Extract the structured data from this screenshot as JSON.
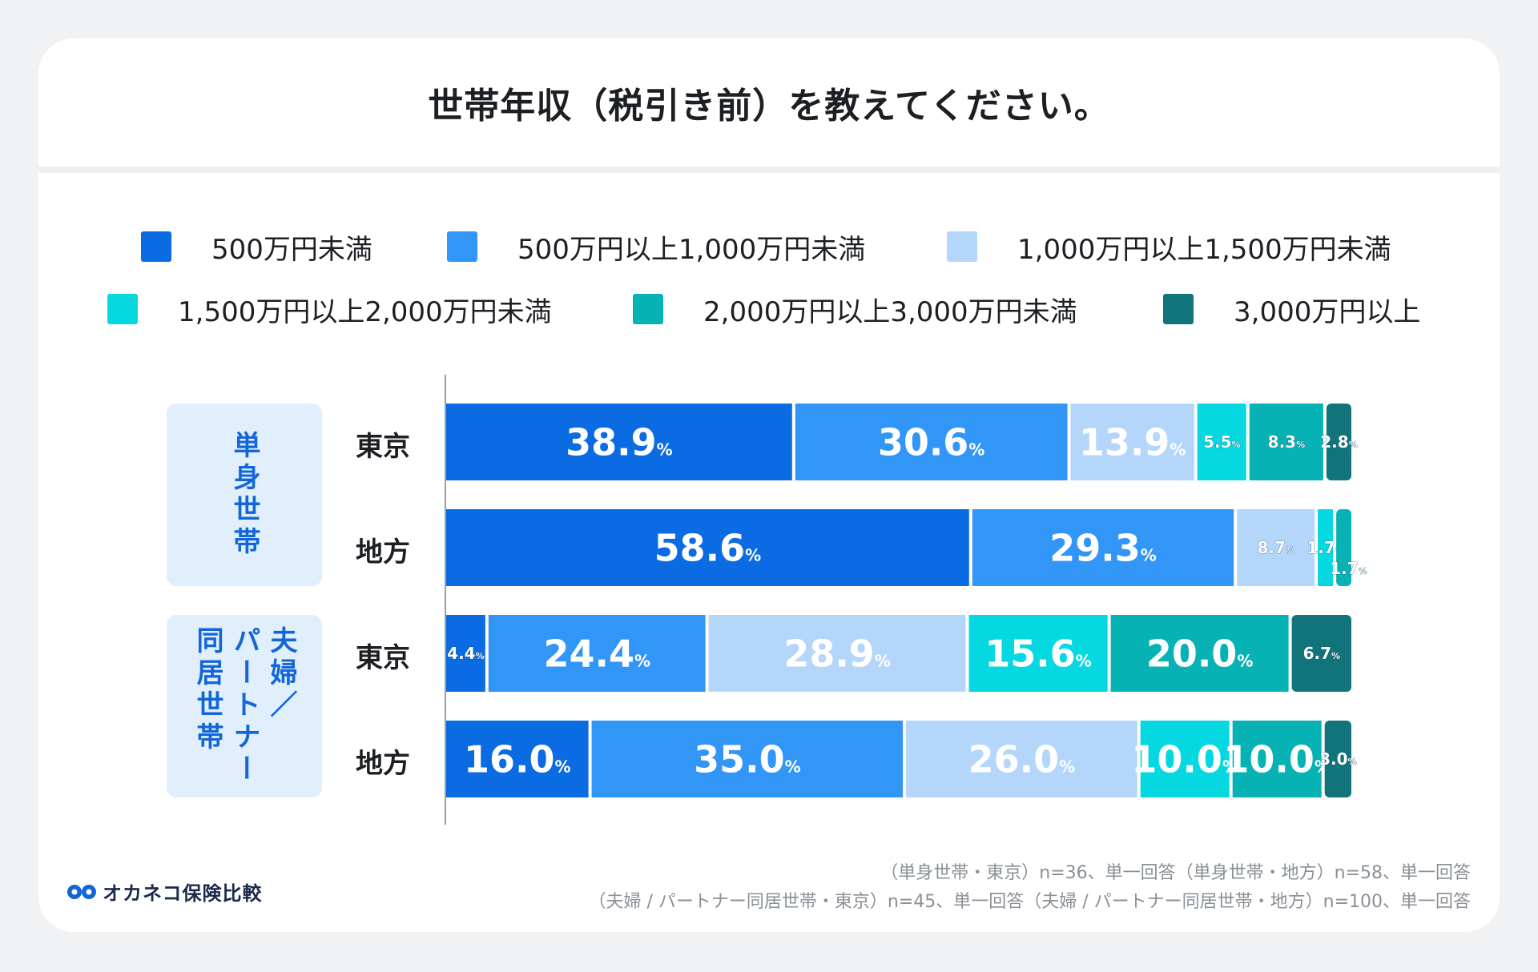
{
  "title": "世帯年収（税引き前）を教えてください。",
  "colors": {
    "under500": "#0a6be2",
    "500to1000": "#3296f7",
    "1000to1500": "#b5d6fb",
    "1500to2000": "#06d8e2",
    "2000to3000": "#06b2b4",
    "over3000": "#11747a"
  },
  "chart_data": {
    "type": "bar",
    "orientation": "horizontal-stacked-100",
    "title": "世帯年収（税引き前）を教えてください。",
    "unit": "%",
    "legend": [
      "500万円未満",
      "500万円以上1,000万円未満",
      "1,000万円以上1,500万円未満",
      "1,500万円以上2,000万円未満",
      "2,000万円以上3,000万円未満",
      "3,000万円以上"
    ],
    "groups": [
      {
        "name": "単身世帯",
        "rows": [
          "東京",
          "地方"
        ]
      },
      {
        "name": "夫婦／パートナー同居世帯",
        "rows": [
          "東京",
          "地方"
        ]
      }
    ],
    "categories": [
      "単身世帯・東京",
      "単身世帯・地方",
      "夫婦/パートナー同居世帯・東京",
      "夫婦/パートナー同居世帯・地方"
    ],
    "row_labels": [
      "東京",
      "地方",
      "東京",
      "地方"
    ],
    "series": [
      {
        "name": "500万円未満",
        "values": [
          38.9,
          58.6,
          4.4,
          16.0
        ],
        "labels": [
          "38.9",
          "58.6",
          "4.4",
          "16.0"
        ]
      },
      {
        "name": "500万円以上1,000万円未満",
        "values": [
          30.6,
          29.3,
          24.4,
          35.0
        ],
        "labels": [
          "30.6",
          "29.3",
          "24.4",
          "35.0"
        ]
      },
      {
        "name": "1,000万円以上1,500万円未満",
        "values": [
          13.9,
          8.7,
          28.9,
          26.0
        ],
        "labels": [
          "13.9",
          "8.7",
          "28.9",
          "26.0"
        ]
      },
      {
        "name": "1,500万円以上2,000万円未満",
        "values": [
          5.5,
          1.7,
          15.6,
          10.0
        ],
        "labels": [
          "5.5",
          "1.7",
          "15.6",
          "10.0"
        ]
      },
      {
        "name": "2,000万円以上3,000万円未満",
        "values": [
          8.3,
          1.7,
          20.0,
          10.0
        ],
        "labels": [
          "8.3",
          "1.7",
          "20.0",
          "10.0"
        ]
      },
      {
        "name": "3,000万円以上",
        "values": [
          2.8,
          0.0,
          6.7,
          3.0
        ],
        "labels": [
          "2.8",
          "",
          "6.7",
          "3.0"
        ]
      }
    ],
    "xlim": [
      0,
      100
    ]
  },
  "group_labels": {
    "single_col": "単身世帯",
    "couple_col1": "夫婦／",
    "couple_col2": "パートナー",
    "couple_col3": "同居世帯"
  },
  "footnotes": {
    "line1": "（単身世帯・東京）n=36、単一回答（単身世帯・地方）n=58、単一回答",
    "line2": "（夫婦 / パートナー同居世帯・東京）n=45、単一回答（夫婦 / パートナー同居世帯・地方）n=100、単一回答"
  },
  "logo": {
    "text": "オカネコ保険比較"
  }
}
